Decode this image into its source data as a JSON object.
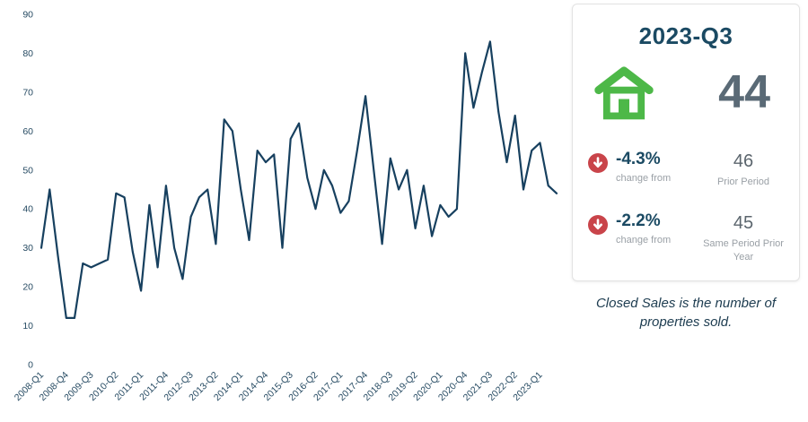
{
  "chart_data": {
    "type": "line",
    "title": "",
    "xlabel": "",
    "ylabel": "",
    "ylim": [
      0,
      90
    ],
    "y_ticks": [
      0,
      10,
      20,
      30,
      40,
      50,
      60,
      70,
      80,
      90
    ],
    "tick_every": 3,
    "grid": false,
    "legend": "none",
    "x": [
      "2008-Q1",
      "2008-Q2",
      "2008-Q3",
      "2008-Q4",
      "2009-Q1",
      "2009-Q2",
      "2009-Q3",
      "2009-Q4",
      "2010-Q1",
      "2010-Q2",
      "2010-Q3",
      "2010-Q4",
      "2011-Q1",
      "2011-Q2",
      "2011-Q3",
      "2011-Q4",
      "2012-Q1",
      "2012-Q2",
      "2012-Q3",
      "2012-Q4",
      "2013-Q1",
      "2013-Q2",
      "2013-Q3",
      "2013-Q4",
      "2014-Q1",
      "2014-Q2",
      "2014-Q3",
      "2014-Q4",
      "2015-Q1",
      "2015-Q2",
      "2015-Q3",
      "2015-Q4",
      "2016-Q1",
      "2016-Q2",
      "2016-Q3",
      "2016-Q4",
      "2017-Q1",
      "2017-Q2",
      "2017-Q3",
      "2017-Q4",
      "2018-Q1",
      "2018-Q2",
      "2018-Q3",
      "2018-Q4",
      "2019-Q1",
      "2019-Q2",
      "2019-Q3",
      "2019-Q4",
      "2020-Q1",
      "2020-Q2",
      "2020-Q3",
      "2020-Q4",
      "2021-Q1",
      "2021-Q2",
      "2021-Q3",
      "2021-Q4",
      "2022-Q1",
      "2022-Q2",
      "2022-Q3",
      "2022-Q4",
      "2023-Q1",
      "2023-Q2",
      "2023-Q3"
    ],
    "values": [
      30,
      45,
      28,
      12,
      12,
      26,
      25,
      26,
      27,
      44,
      43,
      29,
      19,
      41,
      25,
      46,
      30,
      22,
      38,
      43,
      45,
      31,
      63,
      60,
      45,
      32,
      55,
      52,
      54,
      30,
      58,
      62,
      48,
      40,
      50,
      46,
      39,
      42,
      55,
      69,
      50,
      31,
      53,
      45,
      50,
      35,
      46,
      33,
      41,
      38,
      40,
      80,
      66,
      75,
      83,
      65,
      52,
      64,
      45,
      55,
      57,
      46,
      44
    ]
  },
  "panel": {
    "title": "2023-Q3",
    "current_value": "44",
    "rows": [
      {
        "pct": "-4.3%",
        "caption": "change from",
        "value": "46",
        "label": "Prior Period"
      },
      {
        "pct": "-2.2%",
        "caption": "change from",
        "value": "45",
        "label": "Same Period Prior Year"
      }
    ],
    "footnote": "Closed Sales is the number of properties sold."
  },
  "colors": {
    "line": "#17405f",
    "navy": "#1b4a63",
    "big_number": "#5a6a76",
    "red": "#c9444a",
    "green": "#4db848",
    "axis_text": "#274b63",
    "muted": "#9aa0a6"
  }
}
